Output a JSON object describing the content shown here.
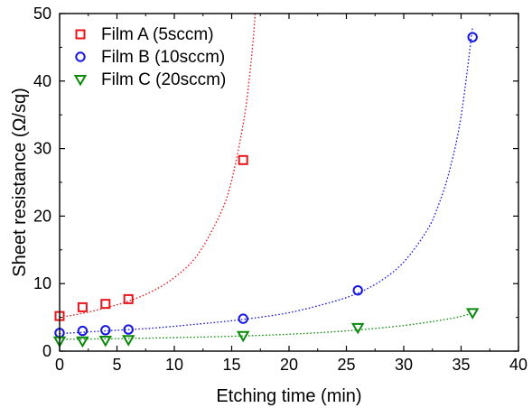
{
  "chart_data": {
    "type": "scatter",
    "title": "",
    "xlabel": "Etching time (min)",
    "ylabel": "Sheet resistance (Ω/sq)",
    "xlim": [
      0,
      40
    ],
    "ylim": [
      0,
      50
    ],
    "xticks": [
      0,
      5,
      10,
      15,
      20,
      25,
      30,
      35,
      40
    ],
    "xtick_labels": [
      "0",
      "5",
      "10",
      "15",
      "20",
      "25",
      "30",
      "35",
      "40"
    ],
    "yticks": [
      0,
      10,
      20,
      30,
      40,
      50
    ],
    "ytick_labels": [
      "0",
      "10",
      "20",
      "30",
      "40",
      "50"
    ],
    "grid": false,
    "legend_position": "top-left",
    "series": [
      {
        "name": "Film A (5sccm)",
        "color": "#e8151b",
        "marker": "square",
        "x": [
          0,
          2,
          4,
          6,
          16
        ],
        "y": [
          5.2,
          6.5,
          7.0,
          7.7,
          28.3
        ],
        "fit": {
          "style": "dotted",
          "x": [
            0,
            2,
            4,
            6,
            8,
            10,
            12,
            14,
            15,
            16,
            16.5,
            17,
            17.5
          ],
          "y": [
            5.0,
            5.6,
            6.4,
            7.4,
            8.8,
            10.9,
            14.2,
            20.3,
            25.3,
            33.6,
            39.8,
            48.8,
            62.8
          ]
        }
      },
      {
        "name": "Film B (10sccm)",
        "color": "#1616e0",
        "marker": "circle",
        "x": [
          0,
          2,
          4,
          6,
          16,
          26,
          36
        ],
        "y": [
          2.7,
          3.0,
          3.1,
          3.2,
          4.8,
          9.0,
          46.5
        ],
        "fit": {
          "style": "dotted",
          "x": [
            0,
            4,
            8,
            12,
            16,
            20,
            24,
            26,
            28,
            30,
            32,
            33,
            34,
            35,
            36
          ],
          "y": [
            2.6,
            3.0,
            3.4,
            4.0,
            4.7,
            5.7,
            7.4,
            8.6,
            10.4,
            13.2,
            17.8,
            21.5,
            26.8,
            34.8,
            48.0
          ]
        }
      },
      {
        "name": "Film C (20sccm)",
        "color": "#0c8a0c",
        "marker": "triangle-down",
        "x": [
          0,
          2,
          4,
          6,
          16,
          26,
          36
        ],
        "y": [
          1.5,
          1.5,
          1.6,
          1.7,
          2.3,
          3.5,
          5.7
        ],
        "fit": {
          "style": "dotted",
          "x": [
            0,
            5,
            10,
            15,
            20,
            25,
            30,
            34,
            36
          ],
          "y": [
            1.75,
            1.85,
            2.0,
            2.2,
            2.5,
            3.0,
            3.8,
            4.8,
            5.6
          ]
        }
      }
    ]
  }
}
